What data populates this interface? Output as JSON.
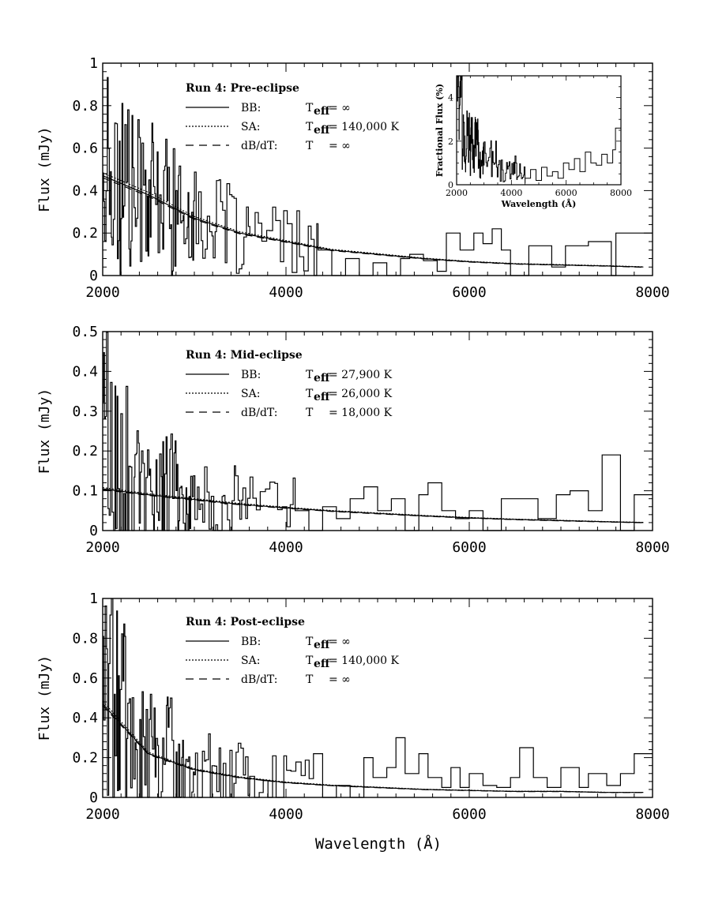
{
  "figure": {
    "xlabel": "Wavelength (Å)"
  },
  "chart_data": [
    {
      "type": "line",
      "title": "Run 4: Pre-eclipse",
      "xlabel": "",
      "ylabel": "Flux (mJy)",
      "xlim": [
        2000,
        8000
      ],
      "ylim": [
        0,
        1
      ],
      "x_ticks": [
        "2000",
        "4000",
        "6000",
        "8000"
      ],
      "y_ticks": [
        "0",
        "0.2",
        "0.4",
        "0.6",
        "0.8",
        "1"
      ],
      "legend": [
        {
          "name": "BB:",
          "temp": "T",
          "sub": "eff",
          "value": "= ∞",
          "style": "solid"
        },
        {
          "name": "SA:",
          "temp": "T",
          "sub": "eff",
          "value": "= 140,000 K",
          "style": "dotted"
        },
        {
          "name": "dB/dT:",
          "temp": "T",
          "sub": "",
          "value": "= ∞",
          "style": "dashed"
        }
      ],
      "model_curve": {
        "x": [
          2000,
          2500,
          3000,
          3500,
          4000,
          4500,
          5000,
          5500,
          6000,
          6500,
          7000,
          7500,
          7900
        ],
        "y": [
          0.47,
          0.38,
          0.27,
          0.2,
          0.16,
          0.12,
          0.1,
          0.08,
          0.065,
          0.055,
          0.05,
          0.045,
          0.04
        ]
      },
      "spectrum_steps": {
        "x": [
          4350,
          4500,
          4650,
          4800,
          4950,
          5100,
          5250,
          5350,
          5500,
          5650,
          5750,
          5900,
          6050,
          6150,
          6250,
          6350,
          6450,
          6650,
          6900,
          7050,
          7300,
          7550,
          7600,
          7800,
          8000
        ],
        "y": [
          0.12,
          0.0,
          0.08,
          0.0,
          0.06,
          0.0,
          0.08,
          0.1,
          0.07,
          0.02,
          0.2,
          0.12,
          0.2,
          0.15,
          0.22,
          0.12,
          0.0,
          0.14,
          0.04,
          0.14,
          0.16,
          0.0,
          0.2,
          0.2,
          0.2
        ]
      },
      "inset": {
        "xlabel": "Wavelength (Å)",
        "ylabel": "Fractional Flux (%)",
        "xlim": [
          2000,
          8000
        ],
        "ylim": [
          0,
          5
        ],
        "x_ticks": [
          "2000",
          "4000",
          "6000",
          "8000"
        ],
        "y_ticks": [
          "0",
          "2",
          "4"
        ],
        "steps": {
          "x": [
            4500,
            4700,
            4900,
            5100,
            5300,
            5500,
            5700,
            5900,
            6100,
            6300,
            6500,
            6700,
            6900,
            7100,
            7300,
            7500,
            7700,
            7800,
            8000
          ],
          "y": [
            0.3,
            0.7,
            0.2,
            0.8,
            0.4,
            0.6,
            0.3,
            1.0,
            0.7,
            1.2,
            0.6,
            1.5,
            1.0,
            0.9,
            1.4,
            1.0,
            1.6,
            2.6,
            2.6
          ]
        }
      }
    },
    {
      "type": "line",
      "title": "Run 4: Mid-eclipse",
      "xlabel": "",
      "ylabel": "Flux (mJy)",
      "xlim": [
        2000,
        8000
      ],
      "ylim": [
        0,
        0.5
      ],
      "x_ticks": [
        "2000",
        "4000",
        "6000",
        "8000"
      ],
      "y_ticks": [
        "0",
        "0.1",
        "0.2",
        "0.3",
        "0.4",
        "0.5"
      ],
      "legend": [
        {
          "name": "BB:",
          "temp": "T",
          "sub": "eff",
          "value": "= 27,900 K",
          "style": "solid"
        },
        {
          "name": "SA:",
          "temp": "T",
          "sub": "eff",
          "value": "= 26,000 K",
          "style": "dotted"
        },
        {
          "name": "dB/dT:",
          "temp": "T",
          "sub": "",
          "value": "= 18,000 K",
          "style": "dashed"
        }
      ],
      "model_curve": {
        "x": [
          2000,
          2500,
          3000,
          3500,
          4000,
          4500,
          5000,
          5500,
          6000,
          6500,
          7000,
          7500,
          7900
        ],
        "y": [
          0.105,
          0.09,
          0.078,
          0.066,
          0.057,
          0.049,
          0.043,
          0.037,
          0.032,
          0.028,
          0.025,
          0.022,
          0.02
        ]
      },
      "spectrum_steps": {
        "x": [
          4100,
          4250,
          4400,
          4550,
          4700,
          4850,
          5000,
          5150,
          5300,
          5450,
          5550,
          5700,
          5850,
          6000,
          6150,
          6350,
          6550,
          6750,
          6950,
          7100,
          7300,
          7450,
          7650,
          7800,
          8000
        ],
        "y": [
          0.05,
          0.0,
          0.06,
          0.03,
          0.08,
          0.11,
          0.05,
          0.08,
          0.0,
          0.09,
          0.12,
          0.05,
          0.03,
          0.05,
          0.0,
          0.08,
          0.08,
          0.03,
          0.09,
          0.1,
          0.05,
          0.19,
          0.0,
          0.09,
          0.09
        ]
      }
    },
    {
      "type": "line",
      "title": "Run 4: Post-eclipse",
      "xlabel": "Wavelength (Å)",
      "ylabel": "Flux (mJy)",
      "xlim": [
        2000,
        8000
      ],
      "ylim": [
        0,
        1
      ],
      "x_ticks": [
        "2000",
        "4000",
        "6000",
        "8000"
      ],
      "y_ticks": [
        "0",
        "0.2",
        "0.4",
        "0.6",
        "0.8",
        "1"
      ],
      "legend": [
        {
          "name": "BB:",
          "temp": "T",
          "sub": "eff",
          "value": "= ∞",
          "style": "solid"
        },
        {
          "name": "SA:",
          "temp": "T",
          "sub": "eff",
          "value": "= 140,000 K",
          "style": "dotted"
        },
        {
          "name": "dB/dT:",
          "temp": "T",
          "sub": "",
          "value": "= ∞",
          "style": "dashed"
        }
      ],
      "model_curve": {
        "x": [
          2000,
          2500,
          3000,
          3500,
          4000,
          4500,
          5000,
          5500,
          6000,
          6500,
          7000,
          7500,
          7900
        ],
        "y": [
          0.47,
          0.22,
          0.14,
          0.1,
          0.075,
          0.06,
          0.05,
          0.04,
          0.035,
          0.03,
          0.03,
          0.025,
          0.025
        ]
      },
      "spectrum_steps": {
        "x": [
          4300,
          4400,
          4550,
          4700,
          4850,
          4950,
          5100,
          5200,
          5300,
          5450,
          5550,
          5700,
          5800,
          5900,
          6000,
          6150,
          6300,
          6450,
          6550,
          6700,
          6850,
          7000,
          7200,
          7300,
          7500,
          7650,
          7800,
          8000
        ],
        "y": [
          0.22,
          0.0,
          0.06,
          0.0,
          0.2,
          0.1,
          0.15,
          0.3,
          0.12,
          0.22,
          0.1,
          0.05,
          0.15,
          0.05,
          0.12,
          0.06,
          0.05,
          0.1,
          0.25,
          0.1,
          0.05,
          0.15,
          0.05,
          0.12,
          0.06,
          0.12,
          0.22,
          0.22
        ]
      }
    }
  ]
}
